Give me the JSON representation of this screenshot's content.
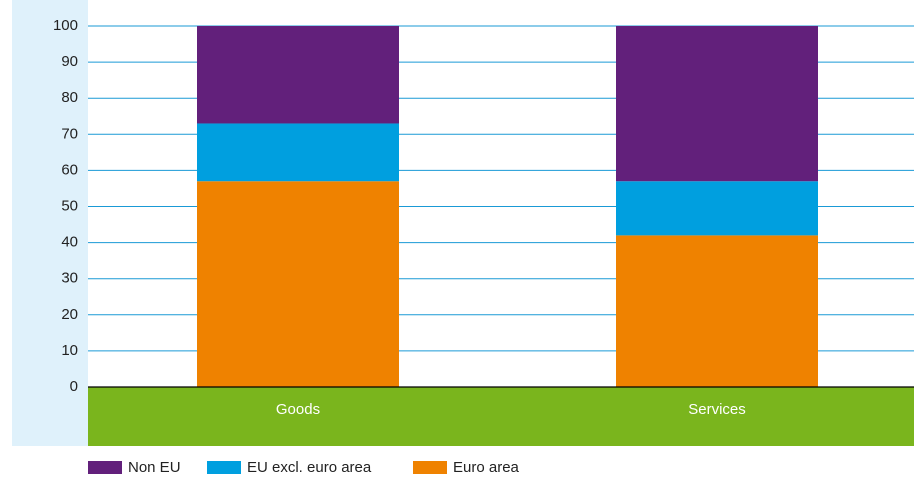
{
  "chart_data": {
    "type": "stacked-bar",
    "categories": [
      "Goods",
      "Services"
    ],
    "series": [
      {
        "name": "Euro area",
        "color": "#ef8200",
        "values": [
          57,
          42
        ]
      },
      {
        "name": "EU excl. euro area",
        "color": "#009fdf",
        "values": [
          16,
          15
        ]
      },
      {
        "name": "Non EU",
        "color": "#62207b",
        "values": [
          27,
          43
        ]
      }
    ],
    "ylim": [
      0,
      100
    ],
    "yticks": [
      0,
      10,
      20,
      30,
      40,
      50,
      60,
      70,
      80,
      90,
      100
    ],
    "grid": true
  }
}
